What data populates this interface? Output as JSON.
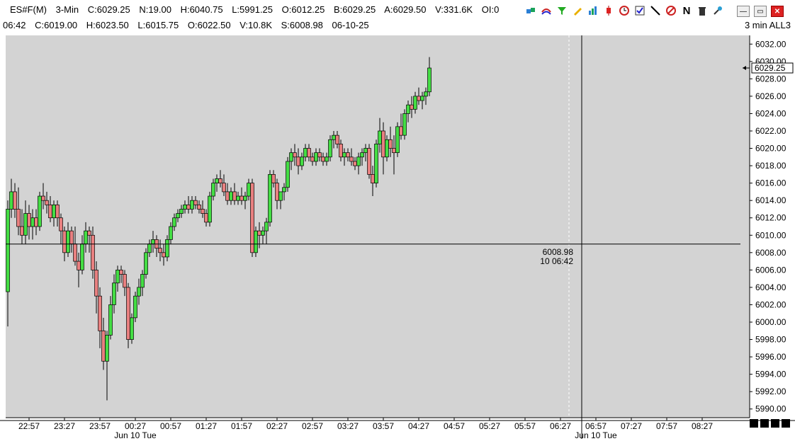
{
  "header": {
    "symbol": "ES#F(M)",
    "interval_short": "3-Min",
    "close": "C:6029.25",
    "net": "N:19.00",
    "high": "H:6040.75",
    "low": "L:5991.25",
    "open": "O:6012.25",
    "bid": "B:6029.25",
    "ask": "A:6029.50",
    "volume": "V:331.6K",
    "open_interest": "OI:0"
  },
  "bar_info": {
    "time": "06:42",
    "close": "C:6019.00",
    "high": "H:6023.50",
    "low": "L:6015.75",
    "open": "O:6022.50",
    "volume": "V:10.8K",
    "settle": "S:6008.98",
    "date": "06-10-25"
  },
  "interval_label": "3 min ALL3",
  "toolbar_icons": [
    "draw-tool-icon",
    "studies-icon",
    "filter-icon",
    "pencil-icon",
    "bar-chart-icon",
    "candle-icon",
    "clock-icon",
    "checklist-icon",
    "line-tool-icon",
    "no-entry-icon",
    "n-icon",
    "trash-icon",
    "pin-icon"
  ],
  "window_controls": {
    "minimize": "—",
    "restore": "▭",
    "close": "✕"
  },
  "chart_data": {
    "type": "candlestick",
    "ylim": [
      5989,
      6033
    ],
    "y_ticks": [
      "6032.00",
      "6030.00",
      "6028.00",
      "6026.00",
      "6024.00",
      "6022.00",
      "6020.00",
      "6018.00",
      "6016.00",
      "6014.00",
      "6012.00",
      "6010.00",
      "6008.00",
      "6006.00",
      "6004.00",
      "6002.00",
      "6000.00",
      "5998.00",
      "5996.00",
      "5994.00",
      "5992.00",
      "5990.00"
    ],
    "x_ticks": [
      "22:57",
      "23:27",
      "23:57",
      "00:27",
      "00:57",
      "01:27",
      "01:57",
      "02:27",
      "02:57",
      "03:27",
      "03:57",
      "04:27",
      "04:57",
      "05:27",
      "05:57",
      "06:27",
      "06:57",
      "07:27",
      "07:57",
      "08:27"
    ],
    "date_labels": [
      "Jun 10 Tue",
      "Jun 10 Tue"
    ],
    "last_price": "6029.25",
    "crosshair": {
      "price": "6008.98",
      "time": "10 06:42",
      "value": 6008.98
    },
    "colors": {
      "up": "#44dd44",
      "down": "#e88080",
      "background": "#d3d3d3"
    },
    "ohlc": [
      [
        6003.5,
        6014.0,
        5999.5,
        6013.0
      ],
      [
        6013.0,
        6016.5,
        6012.0,
        6015.0
      ],
      [
        6015.0,
        6016.0,
        6012.0,
        6013.0
      ],
      [
        6013.0,
        6015.5,
        6010.0,
        6011.0
      ],
      [
        6011.0,
        6013.0,
        6009.0,
        6010.0
      ],
      [
        6010.0,
        6014.0,
        6009.0,
        6012.5
      ],
      [
        6012.5,
        6013.5,
        6009.5,
        6011.0
      ],
      [
        6011.0,
        6013.0,
        6009.5,
        6012.0
      ],
      [
        6012.0,
        6013.0,
        6010.0,
        6011.0
      ],
      [
        6011.0,
        6015.0,
        6010.5,
        6014.5
      ],
      [
        6014.5,
        6016.0,
        6013.0,
        6014.0
      ],
      [
        6014.0,
        6015.0,
        6012.5,
        6013.5
      ],
      [
        6013.5,
        6014.5,
        6011.5,
        6012.0
      ],
      [
        6012.0,
        6014.0,
        6011.0,
        6013.5
      ],
      [
        6013.5,
        6014.0,
        6011.0,
        6012.0
      ],
      [
        6012.0,
        6012.5,
        6009.0,
        6010.5
      ],
      [
        6010.5,
        6011.0,
        6007.0,
        6008.0
      ],
      [
        6008.0,
        6011.5,
        6007.5,
        6010.5
      ],
      [
        6010.5,
        6011.0,
        6008.0,
        6009.0
      ],
      [
        6009.0,
        6011.0,
        6006.5,
        6007.0
      ],
      [
        6007.0,
        6008.0,
        6004.0,
        6006.0
      ],
      [
        6006.0,
        6010.0,
        6005.5,
        6009.0
      ],
      [
        6009.0,
        6011.5,
        6008.0,
        6010.5
      ],
      [
        6010.5,
        6011.0,
        6008.0,
        6010.0
      ],
      [
        6010.0,
        6011.0,
        6005.0,
        6006.0
      ],
      [
        6006.0,
        6007.0,
        6001.0,
        6003.0
      ],
      [
        6003.0,
        6004.0,
        5997.0,
        5999.0
      ],
      [
        5999.0,
        6000.5,
        5994.5,
        5995.5
      ],
      [
        5995.5,
        5999.0,
        5991.0,
        5998.5
      ],
      [
        5998.5,
        6003.0,
        5998.0,
        6002.0
      ],
      [
        6002.0,
        6005.5,
        6001.0,
        6004.5
      ],
      [
        6004.5,
        6006.5,
        6003.5,
        6006.0
      ],
      [
        6006.0,
        6006.5,
        6004.5,
        6005.5
      ],
      [
        6005.5,
        6006.0,
        6003.0,
        6004.0
      ],
      [
        6004.0,
        6004.5,
        5997.0,
        5998.0
      ],
      [
        5998.0,
        6001.0,
        5997.5,
        6000.5
      ],
      [
        6000.5,
        6003.5,
        6000.0,
        6003.0
      ],
      [
        6003.0,
        6005.0,
        6002.0,
        6004.0
      ],
      [
        6004.0,
        6006.0,
        6003.0,
        6005.5
      ],
      [
        6005.5,
        6008.5,
        6005.0,
        6008.0
      ],
      [
        6008.0,
        6009.5,
        6007.5,
        6009.0
      ],
      [
        6009.0,
        6010.5,
        6008.0,
        6009.5
      ],
      [
        6009.5,
        6010.0,
        6007.5,
        6008.5
      ],
      [
        6008.5,
        6009.5,
        6007.0,
        6008.0
      ],
      [
        6008.0,
        6009.0,
        6006.5,
        6007.5
      ],
      [
        6007.5,
        6010.0,
        6007.0,
        6009.5
      ],
      [
        6009.5,
        6011.5,
        6009.0,
        6011.0
      ],
      [
        6011.0,
        6012.5,
        6010.5,
        6012.0
      ],
      [
        6012.0,
        6013.0,
        6011.5,
        6012.5
      ],
      [
        6012.5,
        6013.5,
        6012.0,
        6013.0
      ],
      [
        6013.0,
        6014.0,
        6012.5,
        6013.5
      ],
      [
        6013.5,
        6014.5,
        6012.5,
        6013.0
      ],
      [
        6013.0,
        6014.5,
        6012.5,
        6014.0
      ],
      [
        6014.0,
        6014.5,
        6013.0,
        6013.5
      ],
      [
        6013.5,
        6014.0,
        6012.5,
        6013.0
      ],
      [
        6013.0,
        6014.0,
        6012.0,
        6012.5
      ],
      [
        6012.5,
        6013.0,
        6011.0,
        6011.5
      ],
      [
        6011.5,
        6015.0,
        6011.0,
        6014.5
      ],
      [
        6014.5,
        6016.5,
        6014.0,
        6016.0
      ],
      [
        6016.0,
        6017.0,
        6015.0,
        6016.5
      ],
      [
        6016.5,
        6017.5,
        6015.5,
        6016.0
      ],
      [
        6016.0,
        6017.0,
        6014.5,
        6015.0
      ],
      [
        6015.0,
        6016.0,
        6013.5,
        6014.0
      ],
      [
        6014.0,
        6015.5,
        6013.5,
        6015.0
      ],
      [
        6015.0,
        6016.0,
        6013.5,
        6014.0
      ],
      [
        6014.0,
        6015.0,
        6013.5,
        6014.5
      ],
      [
        6014.5,
        6015.5,
        6013.5,
        6014.0
      ],
      [
        6014.0,
        6015.0,
        6013.0,
        6014.5
      ],
      [
        6014.5,
        6016.5,
        6014.0,
        6016.0
      ],
      [
        6016.0,
        6016.5,
        6007.5,
        6008.0
      ],
      [
        6008.0,
        6011.0,
        6007.5,
        6010.5
      ],
      [
        6010.5,
        6011.5,
        6008.5,
        6010.0
      ],
      [
        6010.0,
        6011.0,
        6009.0,
        6010.5
      ],
      [
        6010.5,
        6012.0,
        6009.0,
        6011.5
      ],
      [
        6011.5,
        6017.5,
        6011.0,
        6017.0
      ],
      [
        6017.0,
        6017.5,
        6015.5,
        6016.0
      ],
      [
        6016.0,
        6016.5,
        6013.0,
        6014.0
      ],
      [
        6014.0,
        6015.0,
        6013.0,
        6015.0
      ],
      [
        6015.0,
        6016.0,
        6014.0,
        6015.5
      ],
      [
        6015.5,
        6019.0,
        6015.0,
        6018.5
      ],
      [
        6018.5,
        6020.0,
        6017.5,
        6019.5
      ],
      [
        6019.5,
        6020.5,
        6018.0,
        6019.0
      ],
      [
        6019.0,
        6020.0,
        6017.0,
        6018.0
      ],
      [
        6018.0,
        6019.5,
        6017.5,
        6019.0
      ],
      [
        6019.0,
        6020.5,
        6018.5,
        6020.0
      ],
      [
        6020.0,
        6020.5,
        6018.5,
        6019.0
      ],
      [
        6019.0,
        6019.5,
        6018.0,
        6018.5
      ],
      [
        6018.5,
        6020.0,
        6018.0,
        6019.5
      ],
      [
        6019.5,
        6020.0,
        6018.5,
        6019.0
      ],
      [
        6019.0,
        6019.5,
        6018.0,
        6018.5
      ],
      [
        6018.5,
        6019.5,
        6018.0,
        6019.0
      ],
      [
        6019.0,
        6021.5,
        6018.5,
        6021.0
      ],
      [
        6021.0,
        6022.0,
        6020.0,
        6021.5
      ],
      [
        6021.5,
        6022.0,
        6020.0,
        6020.5
      ],
      [
        6020.5,
        6021.0,
        6018.5,
        6019.0
      ],
      [
        6019.0,
        6020.0,
        6018.0,
        6019.5
      ],
      [
        6019.5,
        6020.0,
        6018.5,
        6019.0
      ],
      [
        6019.0,
        6020.0,
        6018.0,
        6018.5
      ],
      [
        6018.5,
        6019.0,
        6017.5,
        6018.0
      ],
      [
        6018.0,
        6019.5,
        6017.0,
        6019.0
      ],
      [
        6019.0,
        6020.0,
        6018.0,
        6019.5
      ],
      [
        6019.5,
        6020.5,
        6018.5,
        6020.0
      ],
      [
        6020.0,
        6020.5,
        6016.5,
        6017.0
      ],
      [
        6017.0,
        6018.0,
        6014.5,
        6016.0
      ],
      [
        6016.0,
        6021.0,
        6015.5,
        6020.5
      ],
      [
        6020.5,
        6023.5,
        6019.5,
        6022.0
      ],
      [
        6022.0,
        6023.0,
        6017.0,
        6019.0
      ],
      [
        6019.0,
        6021.5,
        6018.5,
        6021.0
      ],
      [
        6021.0,
        6022.5,
        6019.0,
        6020.0
      ],
      [
        6020.0,
        6021.5,
        6017.0,
        6019.5
      ],
      [
        6019.5,
        6023.0,
        6019.0,
        6022.5
      ],
      [
        6022.5,
        6024.0,
        6021.0,
        6021.5
      ],
      [
        6021.5,
        6024.5,
        6021.0,
        6024.0
      ],
      [
        6024.0,
        6025.5,
        6023.0,
        6025.0
      ],
      [
        6025.0,
        6026.0,
        6023.5,
        6024.5
      ],
      [
        6024.5,
        6026.5,
        6024.0,
        6026.0
      ],
      [
        6026.0,
        6027.0,
        6025.0,
        6025.5
      ],
      [
        6025.5,
        6026.5,
        6024.5,
        6026.0
      ],
      [
        6026.0,
        6027.0,
        6025.0,
        6026.5
      ],
      [
        6026.5,
        6030.5,
        6026.0,
        6029.25
      ]
    ]
  }
}
